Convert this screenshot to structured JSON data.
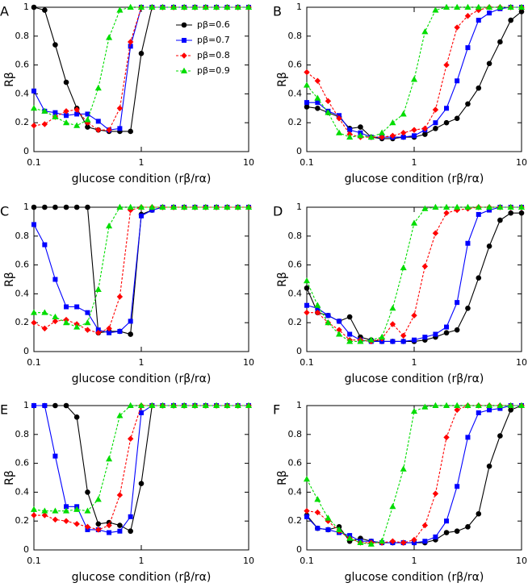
{
  "chart_data": [
    {
      "type": "line",
      "label": "A",
      "xlabel": "glucose condition (rβ/rα)",
      "ylabel": "Rβ",
      "xscale": "log",
      "legend": "upper right",
      "x": [
        0.1,
        0.126,
        0.158,
        0.2,
        0.251,
        0.316,
        0.398,
        0.501,
        0.631,
        0.794,
        1,
        1.26,
        1.58,
        2,
        2.51,
        3.16,
        3.98,
        5.01,
        6.31,
        7.94,
        10
      ],
      "xlim": [
        0.1,
        10
      ],
      "xticks": [
        0.1,
        1,
        10
      ],
      "ylim": [
        0,
        1
      ],
      "yticks": [
        0,
        0.2,
        0.4,
        0.6,
        0.8,
        1
      ],
      "series": [
        {
          "name": "pβ=0.6",
          "color": "#000000",
          "marker": "circle",
          "dash": false,
          "values": [
            1,
            0.98,
            0.74,
            0.48,
            0.3,
            0.17,
            0.15,
            0.14,
            0.14,
            0.14,
            0.68,
            1,
            1,
            1,
            1,
            1,
            1,
            1,
            1,
            1,
            1
          ]
        },
        {
          "name": "pβ=0.7",
          "color": "#0000ff",
          "marker": "square",
          "dash": false,
          "values": [
            0.42,
            0.28,
            0.27,
            0.25,
            0.26,
            0.26,
            0.21,
            0.15,
            0.16,
            0.73,
            1,
            1,
            1,
            1,
            1,
            1,
            1,
            1,
            1,
            1,
            1
          ]
        },
        {
          "name": "pβ=0.8",
          "color": "#ff0000",
          "marker": "diamond",
          "dash": true,
          "values": [
            0.18,
            0.19,
            0.24,
            0.28,
            0.29,
            0.2,
            0.15,
            0.15,
            0.3,
            0.76,
            1,
            1,
            1,
            1,
            1,
            1,
            1,
            1,
            1,
            1,
            1
          ]
        },
        {
          "name": "pβ=0.9",
          "color": "#00dd00",
          "marker": "triangle",
          "dash": true,
          "values": [
            0.3,
            0.28,
            0.24,
            0.2,
            0.18,
            0.22,
            0.44,
            0.79,
            0.98,
            1,
            1,
            1,
            1,
            1,
            1,
            1,
            1,
            1,
            1,
            1,
            1
          ]
        }
      ]
    },
    {
      "type": "line",
      "label": "B",
      "xlabel": "glucose condition (rβ/rα)",
      "ylabel": "Rβ",
      "xscale": "log",
      "x": [
        0.1,
        0.126,
        0.158,
        0.2,
        0.251,
        0.316,
        0.398,
        0.501,
        0.631,
        0.794,
        1,
        1.26,
        1.58,
        2,
        2.51,
        3.16,
        3.98,
        5.01,
        6.31,
        7.94,
        10
      ],
      "xlim": [
        0.1,
        10
      ],
      "xticks": [
        0.1,
        1,
        10
      ],
      "ylim": [
        0,
        1
      ],
      "yticks": [
        0,
        0.2,
        0.4,
        0.6,
        0.8,
        1
      ],
      "series": [
        {
          "color": "#000000",
          "marker": "circle",
          "dash": false,
          "values": [
            0.31,
            0.3,
            0.27,
            0.24,
            0.16,
            0.17,
            0.1,
            0.09,
            0.09,
            0.1,
            0.1,
            0.12,
            0.16,
            0.2,
            0.23,
            0.33,
            0.44,
            0.61,
            0.76,
            0.91,
            0.97
          ]
        },
        {
          "color": "#0000ff",
          "marker": "square",
          "dash": false,
          "values": [
            0.34,
            0.34,
            0.28,
            0.25,
            0.15,
            0.13,
            0.1,
            0.1,
            0.1,
            0.1,
            0.11,
            0.15,
            0.2,
            0.3,
            0.49,
            0.72,
            0.91,
            0.96,
            0.99,
            1,
            1
          ]
        },
        {
          "color": "#ff0000",
          "marker": "diamond",
          "dash": true,
          "values": [
            0.55,
            0.49,
            0.35,
            0.23,
            0.12,
            0.1,
            0.1,
            0.1,
            0.11,
            0.13,
            0.15,
            0.16,
            0.29,
            0.6,
            0.86,
            0.94,
            0.98,
            1,
            1,
            1,
            1
          ]
        },
        {
          "color": "#00dd00",
          "marker": "triangle",
          "dash": true,
          "values": [
            0.46,
            0.37,
            0.27,
            0.13,
            0.1,
            0.11,
            0.1,
            0.13,
            0.2,
            0.26,
            0.5,
            0.83,
            0.98,
            1,
            1,
            1,
            1,
            1,
            1,
            1,
            1
          ]
        }
      ]
    },
    {
      "type": "line",
      "label": "C",
      "xlabel": "glucose condition (rβ/rα)",
      "ylabel": "Rβ",
      "xscale": "log",
      "x": [
        0.1,
        0.126,
        0.158,
        0.2,
        0.251,
        0.316,
        0.398,
        0.501,
        0.631,
        0.794,
        1,
        1.26,
        1.58,
        2,
        2.51,
        3.16,
        3.98,
        5.01,
        6.31,
        7.94,
        10
      ],
      "xlim": [
        0.1,
        10
      ],
      "xticks": [
        0.1,
        1,
        10
      ],
      "ylim": [
        0,
        1
      ],
      "yticks": [
        0,
        0.2,
        0.4,
        0.6,
        0.8,
        1
      ],
      "series": [
        {
          "color": "#000000",
          "marker": "circle",
          "dash": false,
          "values": [
            1,
            1,
            1,
            1,
            1,
            1,
            0.13,
            0.14,
            0.14,
            0.12,
            0.95,
            0.98,
            1,
            1,
            1,
            1,
            1,
            1,
            1,
            1,
            1
          ]
        },
        {
          "color": "#0000ff",
          "marker": "square",
          "dash": false,
          "values": [
            0.88,
            0.74,
            0.5,
            0.31,
            0.31,
            0.27,
            0.15,
            0.13,
            0.14,
            0.21,
            0.94,
            0.98,
            1,
            1,
            1,
            1,
            1,
            1,
            1,
            1,
            1
          ]
        },
        {
          "color": "#ff0000",
          "marker": "diamond",
          "dash": true,
          "values": [
            0.2,
            0.16,
            0.21,
            0.22,
            0.19,
            0.15,
            0.13,
            0.16,
            0.38,
            0.98,
            1,
            1,
            1,
            1,
            1,
            1,
            1,
            1,
            1,
            1,
            1
          ]
        },
        {
          "color": "#00dd00",
          "marker": "triangle",
          "dash": true,
          "values": [
            0.27,
            0.27,
            0.24,
            0.2,
            0.17,
            0.2,
            0.43,
            0.87,
            1,
            1,
            1,
            1,
            1,
            1,
            1,
            1,
            1,
            1,
            1,
            1,
            1
          ]
        }
      ]
    },
    {
      "type": "line",
      "label": "D",
      "xlabel": "glucose condition (rβ/rα)",
      "ylabel": "Rβ",
      "xscale": "log",
      "x": [
        0.1,
        0.126,
        0.158,
        0.2,
        0.251,
        0.316,
        0.398,
        0.501,
        0.631,
        0.794,
        1,
        1.26,
        1.58,
        2,
        2.51,
        3.16,
        3.98,
        5.01,
        6.31,
        7.94,
        10
      ],
      "xlim": [
        0.1,
        10
      ],
      "xticks": [
        0.1,
        1,
        10
      ],
      "ylim": [
        0,
        1
      ],
      "yticks": [
        0,
        0.2,
        0.4,
        0.6,
        0.8,
        1
      ],
      "series": [
        {
          "color": "#000000",
          "marker": "circle",
          "dash": false,
          "values": [
            0.44,
            0.27,
            0.25,
            0.21,
            0.24,
            0.1,
            0.08,
            0.07,
            0.07,
            0.07,
            0.07,
            0.08,
            0.1,
            0.13,
            0.15,
            0.3,
            0.51,
            0.73,
            0.91,
            0.96,
            0.96
          ]
        },
        {
          "color": "#0000ff",
          "marker": "square",
          "dash": false,
          "values": [
            0.32,
            0.3,
            0.25,
            0.21,
            0.12,
            0.08,
            0.07,
            0.07,
            0.07,
            0.07,
            0.08,
            0.1,
            0.12,
            0.17,
            0.34,
            0.75,
            0.95,
            0.98,
            1,
            1,
            1
          ]
        },
        {
          "color": "#ff0000",
          "marker": "diamond",
          "dash": true,
          "values": [
            0.27,
            0.27,
            0.2,
            0.15,
            0.08,
            0.08,
            0.07,
            0.09,
            0.19,
            0.11,
            0.25,
            0.59,
            0.82,
            0.96,
            0.98,
            0.99,
            1,
            1,
            1,
            1,
            1
          ]
        },
        {
          "color": "#00dd00",
          "marker": "triangle",
          "dash": true,
          "values": [
            0.49,
            0.32,
            0.2,
            0.12,
            0.07,
            0.07,
            0.08,
            0.1,
            0.3,
            0.58,
            0.89,
            0.99,
            1,
            1,
            1,
            1,
            1,
            1,
            1,
            1,
            1
          ]
        }
      ]
    },
    {
      "type": "line",
      "label": "E",
      "xlabel": "glucose condition (rβ/rα)",
      "ylabel": "Rβ",
      "xscale": "log",
      "x": [
        0.1,
        0.126,
        0.158,
        0.2,
        0.251,
        0.316,
        0.398,
        0.501,
        0.631,
        0.794,
        1,
        1.26,
        1.58,
        2,
        2.51,
        3.16,
        3.98,
        5.01,
        6.31,
        7.94,
        10
      ],
      "xlim": [
        0.1,
        10
      ],
      "xticks": [
        0.1,
        1,
        10
      ],
      "ylim": [
        0,
        1
      ],
      "yticks": [
        0,
        0.2,
        0.4,
        0.6,
        0.8,
        1
      ],
      "series": [
        {
          "color": "#000000",
          "marker": "circle",
          "dash": false,
          "values": [
            1,
            1,
            1,
            1,
            0.92,
            0.4,
            0.18,
            0.19,
            0.17,
            0.13,
            0.46,
            1,
            1,
            1,
            1,
            1,
            1,
            1,
            1,
            1,
            1
          ]
        },
        {
          "color": "#0000ff",
          "marker": "square",
          "dash": false,
          "values": [
            1,
            1,
            0.65,
            0.3,
            0.3,
            0.14,
            0.14,
            0.12,
            0.13,
            0.23,
            0.95,
            1,
            1,
            1,
            1,
            1,
            1,
            1,
            1,
            1,
            1
          ]
        },
        {
          "color": "#ff0000",
          "marker": "diamond",
          "dash": true,
          "values": [
            0.24,
            0.24,
            0.21,
            0.2,
            0.18,
            0.16,
            0.14,
            0.17,
            0.38,
            0.77,
            1,
            1,
            1,
            1,
            1,
            1,
            1,
            1,
            1,
            1,
            1
          ]
        },
        {
          "color": "#00dd00",
          "marker": "triangle",
          "dash": true,
          "values": [
            0.28,
            0.27,
            0.27,
            0.27,
            0.28,
            0.27,
            0.35,
            0.63,
            0.93,
            1,
            1,
            1,
            1,
            1,
            1,
            1,
            1,
            1,
            1,
            1,
            1
          ]
        }
      ]
    },
    {
      "type": "line",
      "label": "F",
      "xlabel": "glucose condition (rβ/rα)",
      "ylabel": "Rβ",
      "xscale": "log",
      "x": [
        0.1,
        0.126,
        0.158,
        0.2,
        0.251,
        0.316,
        0.398,
        0.501,
        0.631,
        0.794,
        1,
        1.26,
        1.58,
        2,
        2.51,
        3.16,
        3.98,
        5.01,
        6.31,
        7.94,
        10
      ],
      "xlim": [
        0.1,
        10
      ],
      "xticks": [
        0.1,
        1,
        10
      ],
      "ylim": [
        0,
        1
      ],
      "yticks": [
        0,
        0.2,
        0.4,
        0.6,
        0.8,
        1
      ],
      "series": [
        {
          "color": "#000000",
          "marker": "circle",
          "dash": false,
          "values": [
            0.24,
            0.15,
            0.14,
            0.16,
            0.06,
            0.08,
            0.06,
            0.05,
            0.05,
            0.05,
            0.05,
            0.05,
            0.07,
            0.12,
            0.13,
            0.16,
            0.25,
            0.58,
            0.79,
            0.97,
            1
          ]
        },
        {
          "color": "#0000ff",
          "marker": "square",
          "dash": false,
          "values": [
            0.23,
            0.15,
            0.14,
            0.12,
            0.1,
            0.06,
            0.06,
            0.05,
            0.05,
            0.05,
            0.05,
            0.06,
            0.09,
            0.2,
            0.44,
            0.78,
            0.95,
            0.97,
            0.98,
            1,
            1
          ]
        },
        {
          "color": "#ff0000",
          "marker": "diamond",
          "dash": true,
          "values": [
            0.27,
            0.26,
            0.2,
            0.13,
            0.08,
            0.05,
            0.05,
            0.05,
            0.06,
            0.05,
            0.07,
            0.17,
            0.39,
            0.78,
            0.97,
            1,
            1,
            1,
            1,
            1,
            1
          ]
        },
        {
          "color": "#00dd00",
          "marker": "triangle",
          "dash": true,
          "values": [
            0.49,
            0.35,
            0.22,
            0.14,
            0.08,
            0.05,
            0.04,
            0.06,
            0.3,
            0.56,
            0.96,
            0.99,
            1,
            1,
            1,
            1,
            1,
            1,
            1,
            1,
            1
          ]
        }
      ]
    }
  ]
}
